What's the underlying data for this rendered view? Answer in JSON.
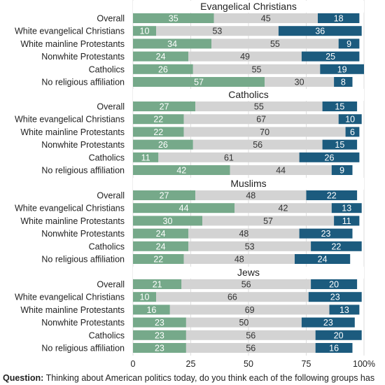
{
  "chart_data": {
    "type": "bar",
    "stacked": true,
    "orientation": "horizontal",
    "colors": [
      "#76a98a",
      "#d3d3d3",
      "#1c5b7e"
    ],
    "xlim": [
      0,
      100
    ],
    "x_ticks": [
      "0",
      "25",
      "50",
      "75",
      "100%"
    ],
    "grid": true,
    "panels": [
      {
        "title": "Evangelical Christians",
        "categories": [
          "Overall",
          "White evangelical Christians",
          "White mainline Protestants",
          "Nonwhite Protestants",
          "Catholics",
          "No religious affiliation"
        ],
        "series": [
          {
            "values": [
              35,
              10,
              34,
              24,
              26,
              57
            ]
          },
          {
            "values": [
              45,
              53,
              55,
              49,
              55,
              30
            ]
          },
          {
            "values": [
              18,
              36,
              9,
              25,
              19,
              8
            ]
          }
        ]
      },
      {
        "title": "Catholics",
        "categories": [
          "Overall",
          "White evangelical Christians",
          "White mainline Protestants",
          "Nonwhite Protestants",
          "Catholics",
          "No religious affiliation"
        ],
        "series": [
          {
            "values": [
              27,
              22,
              22,
              26,
              11,
              42
            ]
          },
          {
            "values": [
              55,
              67,
              70,
              56,
              61,
              44
            ]
          },
          {
            "values": [
              15,
              10,
              6,
              15,
              26,
              9
            ]
          }
        ]
      },
      {
        "title": "Muslims",
        "categories": [
          "Overall",
          "White evangelical Christians",
          "White mainline Protestants",
          "Nonwhite Protestants",
          "Catholics",
          "No religious affiliation"
        ],
        "series": [
          {
            "values": [
              27,
              44,
              30,
              24,
              24,
              22
            ]
          },
          {
            "values": [
              48,
              42,
              57,
              48,
              53,
              48
            ]
          },
          {
            "values": [
              22,
              13,
              11,
              23,
              22,
              24
            ]
          }
        ]
      },
      {
        "title": "Jews",
        "categories": [
          "Overall",
          "White evangelical Christians",
          "White mainline Protestants",
          "Nonwhite Protestants",
          "Catholics",
          "No religious affiliation"
        ],
        "series": [
          {
            "values": [
              21,
              10,
              16,
              23,
              23,
              23
            ]
          },
          {
            "values": [
              56,
              66,
              69,
              50,
              56,
              56
            ]
          },
          {
            "values": [
              20,
              23,
              13,
              23,
              20,
              16
            ]
          }
        ]
      }
    ]
  },
  "question": {
    "label": "Question:",
    "text": "Thinking about American politics today, do you think each of the following groups has"
  }
}
